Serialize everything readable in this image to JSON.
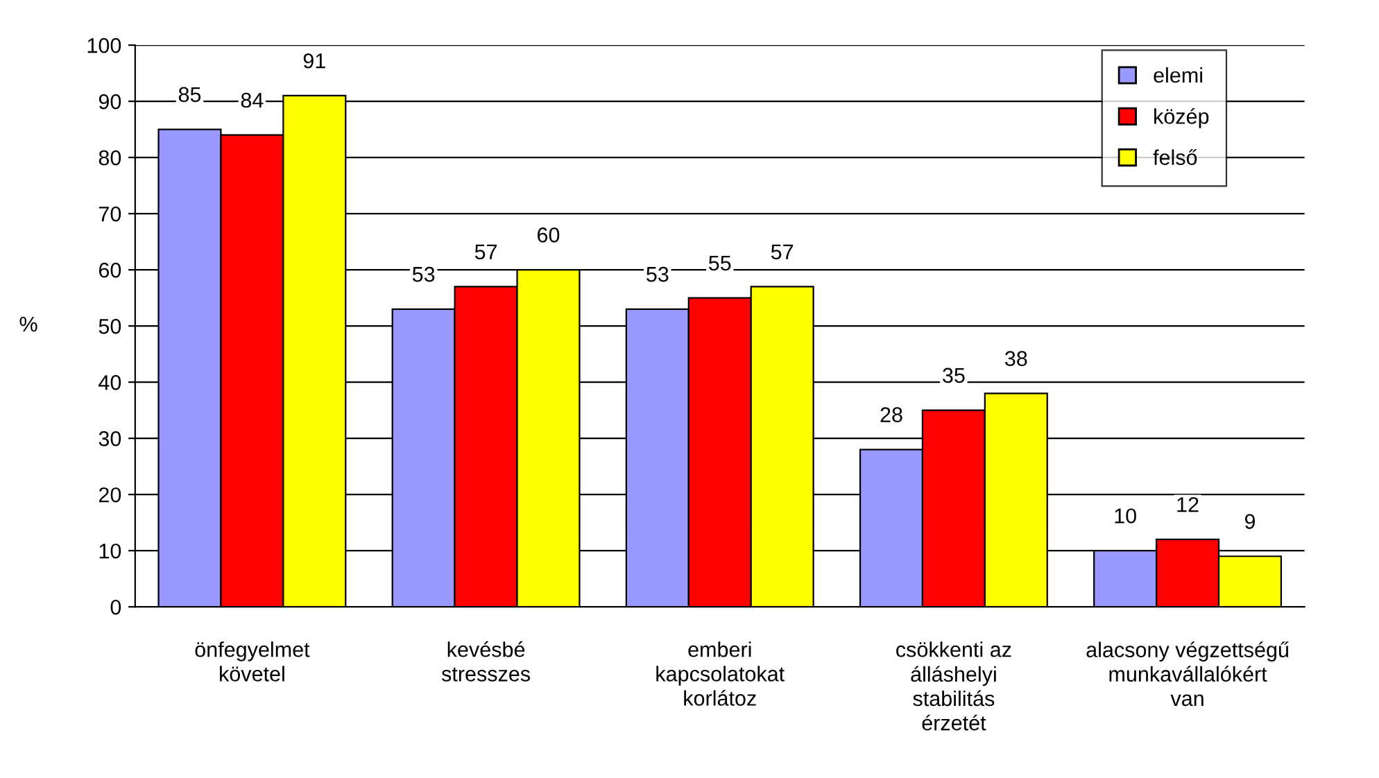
{
  "chart_data": {
    "type": "bar",
    "ylabel": "%",
    "categories": [
      "önfegyelmet\nkövetel",
      "kevésbé\nstresszes",
      "emberi\nkapcsolatokat\nkorlátoz",
      "csökkenti az\nálláshelyi\nstabilitás\nérzetét",
      "alacsony végzettségű\nmunkavállalókért\nvan"
    ],
    "series": [
      {
        "name": "elemi",
        "color": "#9999ff",
        "values": [
          85,
          53,
          53,
          28,
          10
        ]
      },
      {
        "name": "közép",
        "color": "#ff0000",
        "values": [
          84,
          57,
          55,
          35,
          12
        ]
      },
      {
        "name": "felső",
        "color": "#ffff00",
        "values": [
          91,
          60,
          57,
          38,
          9
        ]
      }
    ],
    "ylim": [
      0,
      100
    ],
    "yticks": [
      0,
      10,
      20,
      30,
      40,
      50,
      60,
      70,
      80,
      90,
      100
    ],
    "grid": "y",
    "legend": "top right",
    "data_labels": true
  }
}
